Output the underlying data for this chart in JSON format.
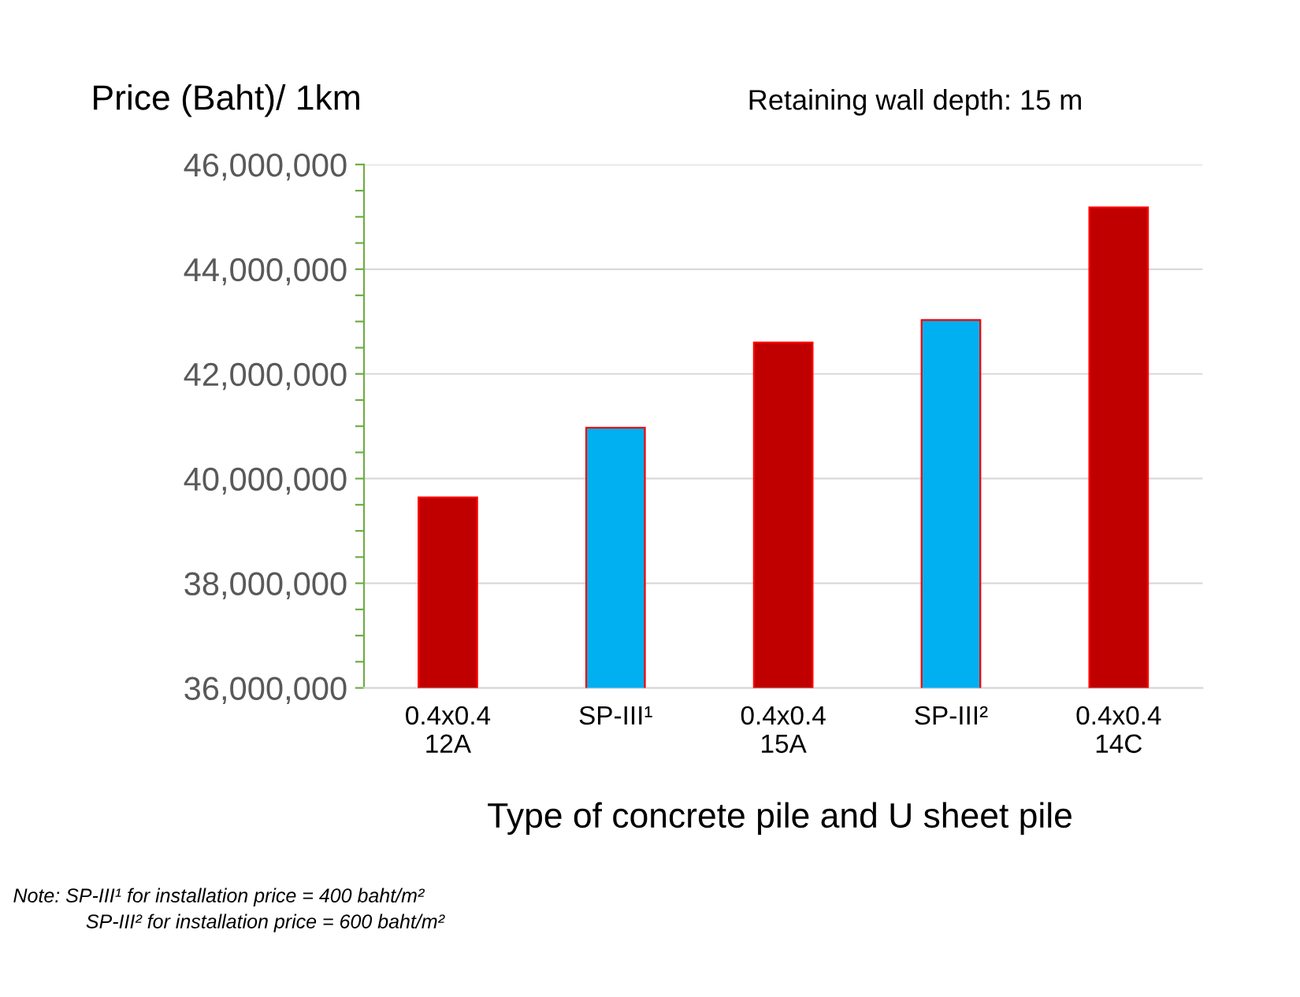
{
  "chart_data": {
    "type": "bar",
    "ylabel": "Price (Baht)/ 1km",
    "subtitle": "Retaining wall depth: 15 m",
    "xlabel": "Type of concrete pile and U sheet pile",
    "categories": [
      "0.4x0.4\n12A",
      "SP-III¹",
      "0.4x0.4\n15A",
      "SP-III²",
      "0.4x0.4\n14C"
    ],
    "values": [
      39640000,
      40970000,
      42600000,
      43030000,
      45180000
    ],
    "colors": [
      "#c00000",
      "#00b0f0",
      "#c00000",
      "#00b0f0",
      "#c00000"
    ],
    "ylim": [
      36000000,
      46000000
    ],
    "yticks": [
      {
        "value": 36000000,
        "label": "36,000,000"
      },
      {
        "value": 36500000,
        "label": null
      },
      {
        "value": 37000000,
        "label": null
      },
      {
        "value": 37500000,
        "label": null
      },
      {
        "value": 38000000,
        "label": "38,000,000"
      },
      {
        "value": 38500000,
        "label": null
      },
      {
        "value": 39000000,
        "label": null
      },
      {
        "value": 39500000,
        "label": null
      },
      {
        "value": 40000000,
        "label": "40,000,000"
      },
      {
        "value": 40500000,
        "label": null
      },
      {
        "value": 41000000,
        "label": null
      },
      {
        "value": 41500000,
        "label": null
      },
      {
        "value": 42000000,
        "label": "42,000,000"
      },
      {
        "value": 42500000,
        "label": null
      },
      {
        "value": 43000000,
        "label": null
      },
      {
        "value": 43500000,
        "label": null
      },
      {
        "value": 44000000,
        "label": "44,000,000"
      },
      {
        "value": 44500000,
        "label": null
      },
      {
        "value": 45000000,
        "label": null
      },
      {
        "value": 45500000,
        "label": null
      },
      {
        "value": 46000000,
        "label": "46,000,000"
      }
    ],
    "grid": "y",
    "annotations": [
      "Note: SP-III¹ for installation price = 400 baht/m²",
      "SP-III² for installation price = 600 baht/m²"
    ]
  }
}
